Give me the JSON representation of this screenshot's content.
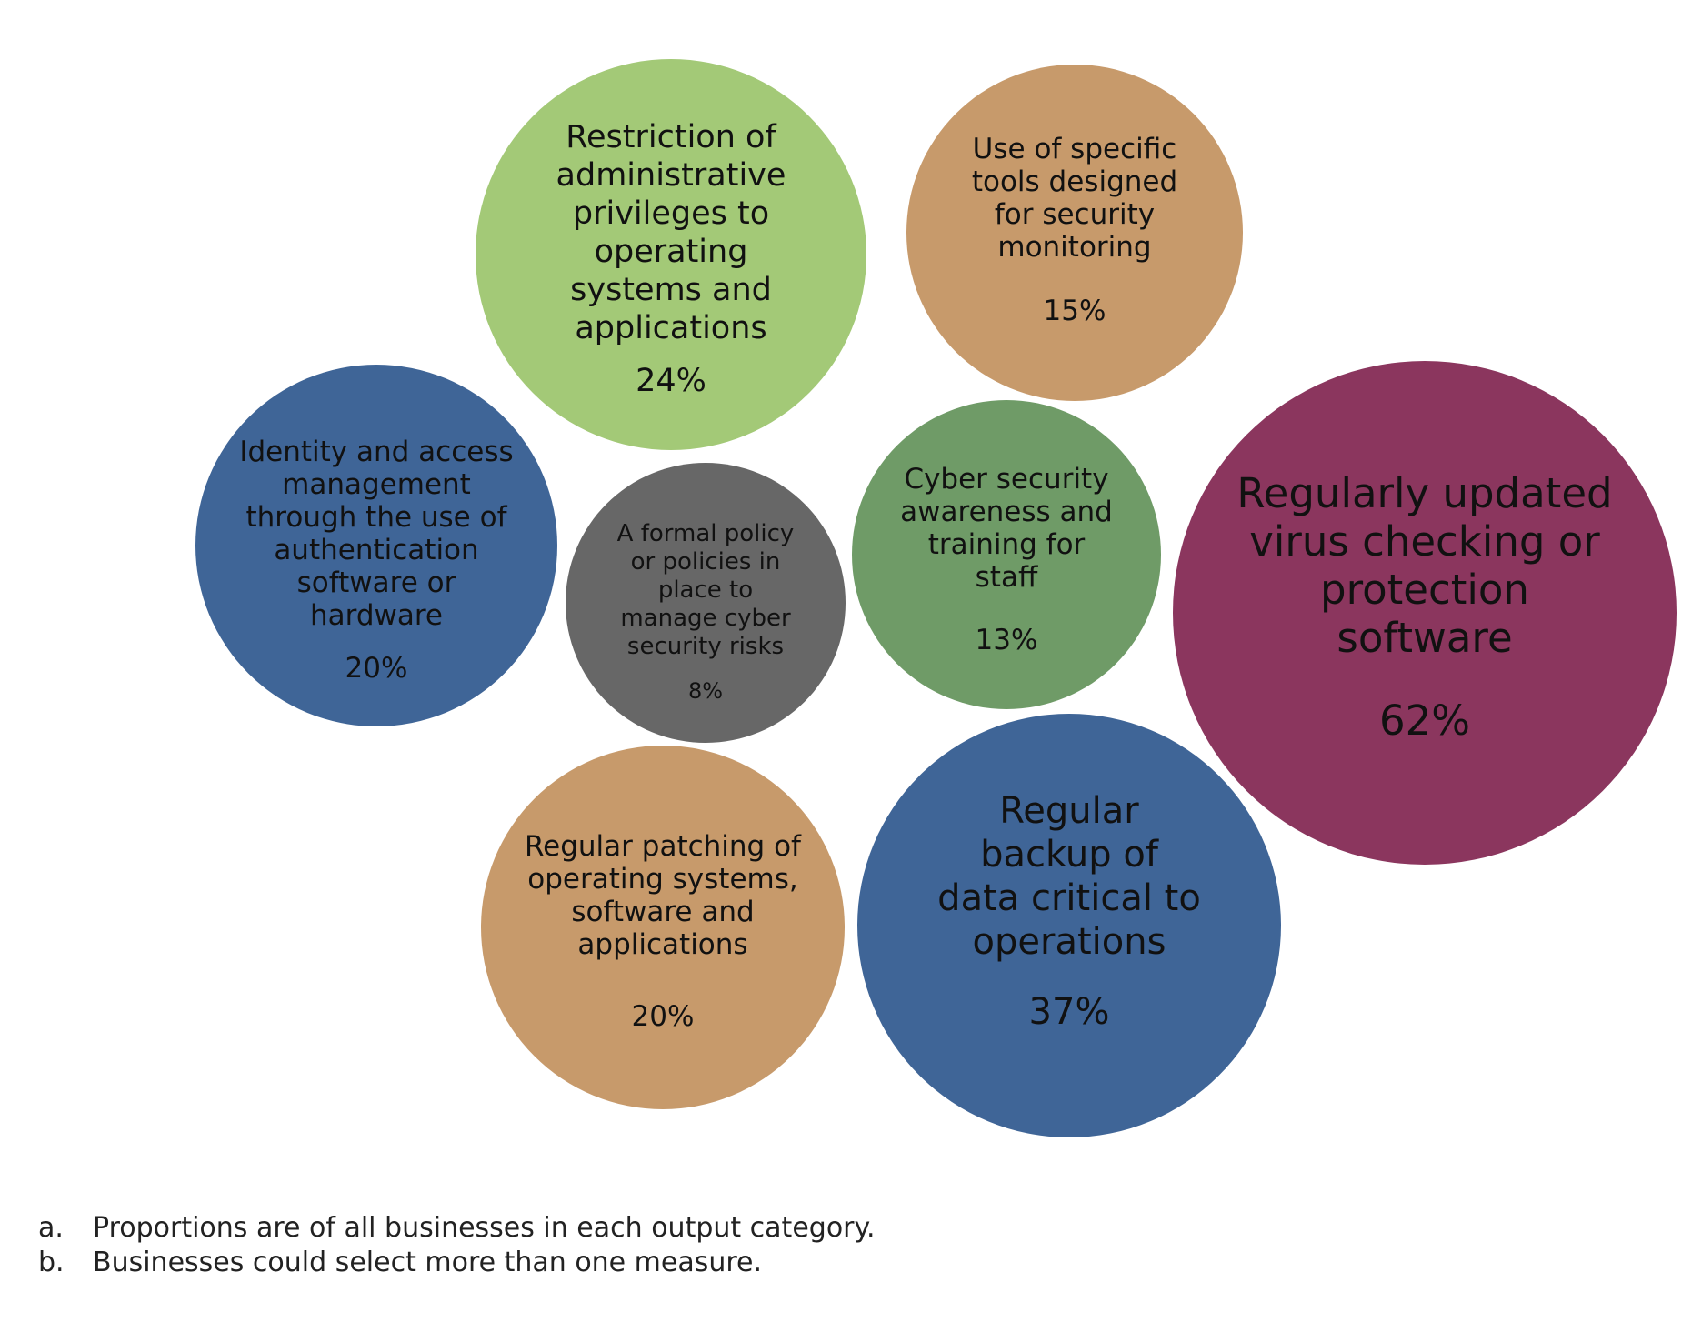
{
  "chart_data": {
    "type": "bubble",
    "bubbles": [
      {
        "label": [
          "Restriction of",
          "administrative",
          "privileges to",
          "operating",
          "systems and",
          "applications"
        ],
        "value": "24%",
        "color": "#a3c977"
      },
      {
        "label": [
          "Use of specific",
          "tools designed",
          "for security",
          "monitoring"
        ],
        "value": "15%",
        "color": "#c79a6b"
      },
      {
        "label": [
          "Identity and access",
          "management",
          "through the use of",
          "authentication",
          "software or",
          "hardware"
        ],
        "value": "20%",
        "color": "#3f6597"
      },
      {
        "label": [
          "A formal policy",
          "or policies in",
          "place to",
          "manage cyber",
          "security risks"
        ],
        "value": "8%",
        "color": "#676767"
      },
      {
        "label": [
          "Cyber security",
          "awareness and",
          "training for",
          "staff"
        ],
        "value": "13%",
        "color": "#6f9b67"
      },
      {
        "label": [
          "Regularly updated",
          "virus checking or",
          "protection",
          "software"
        ],
        "value": "62%",
        "color": "#8b365e"
      },
      {
        "label": [
          "Regular patching of",
          "operating systems,",
          "software and",
          "applications"
        ],
        "value": "20%",
        "color": "#c79a6b"
      },
      {
        "label": [
          "Regular",
          "backup of",
          "data critical to",
          "operations"
        ],
        "value": "37%",
        "color": "#3f6597"
      }
    ]
  },
  "notes": [
    {
      "marker": "a.",
      "text": "Proportions are of all businesses in each output category."
    },
    {
      "marker": "b.",
      "text": "Businesses could select more than one measure."
    }
  ]
}
